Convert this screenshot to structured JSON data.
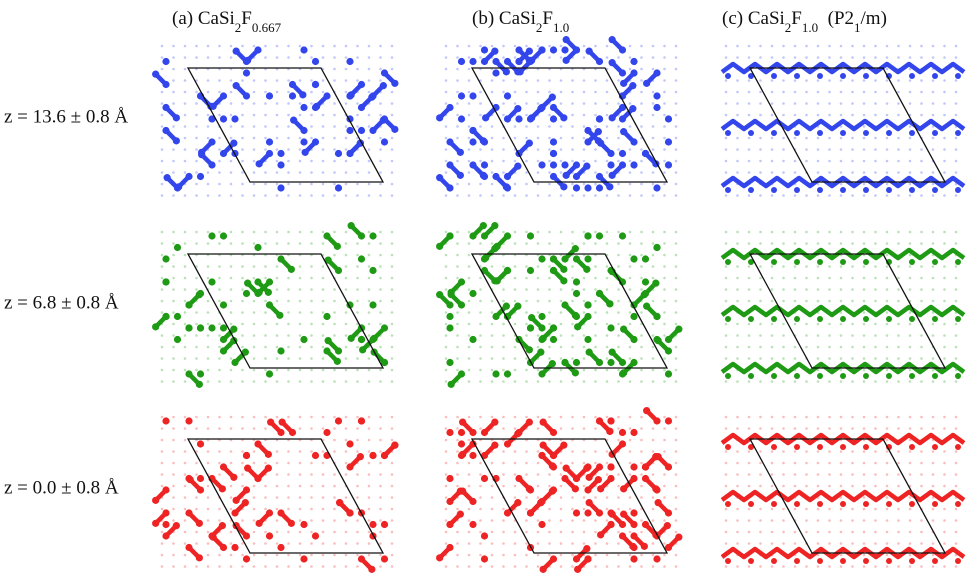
{
  "columns": [
    {
      "title": [
        "(a) CaSi",
        "2",
        "F",
        "0.667"
      ]
    },
    {
      "title": [
        "(b) CaSi",
        "2",
        "F",
        "1.0"
      ]
    },
    {
      "title": [
        "(c) CaSi",
        "2",
        "F",
        "1.0",
        "  (P2",
        "1",
        "/m)"
      ]
    }
  ],
  "rows": [
    {
      "label": "z = 13.6 ± 0.8 Å",
      "color": "#3346ec"
    },
    {
      "label": "z = 6.8 ± 0.8 Å",
      "color": "#1f9a14"
    },
    {
      "label": "z = 0.0 ± 0.8 Å",
      "color": "#ee2424"
    }
  ]
}
